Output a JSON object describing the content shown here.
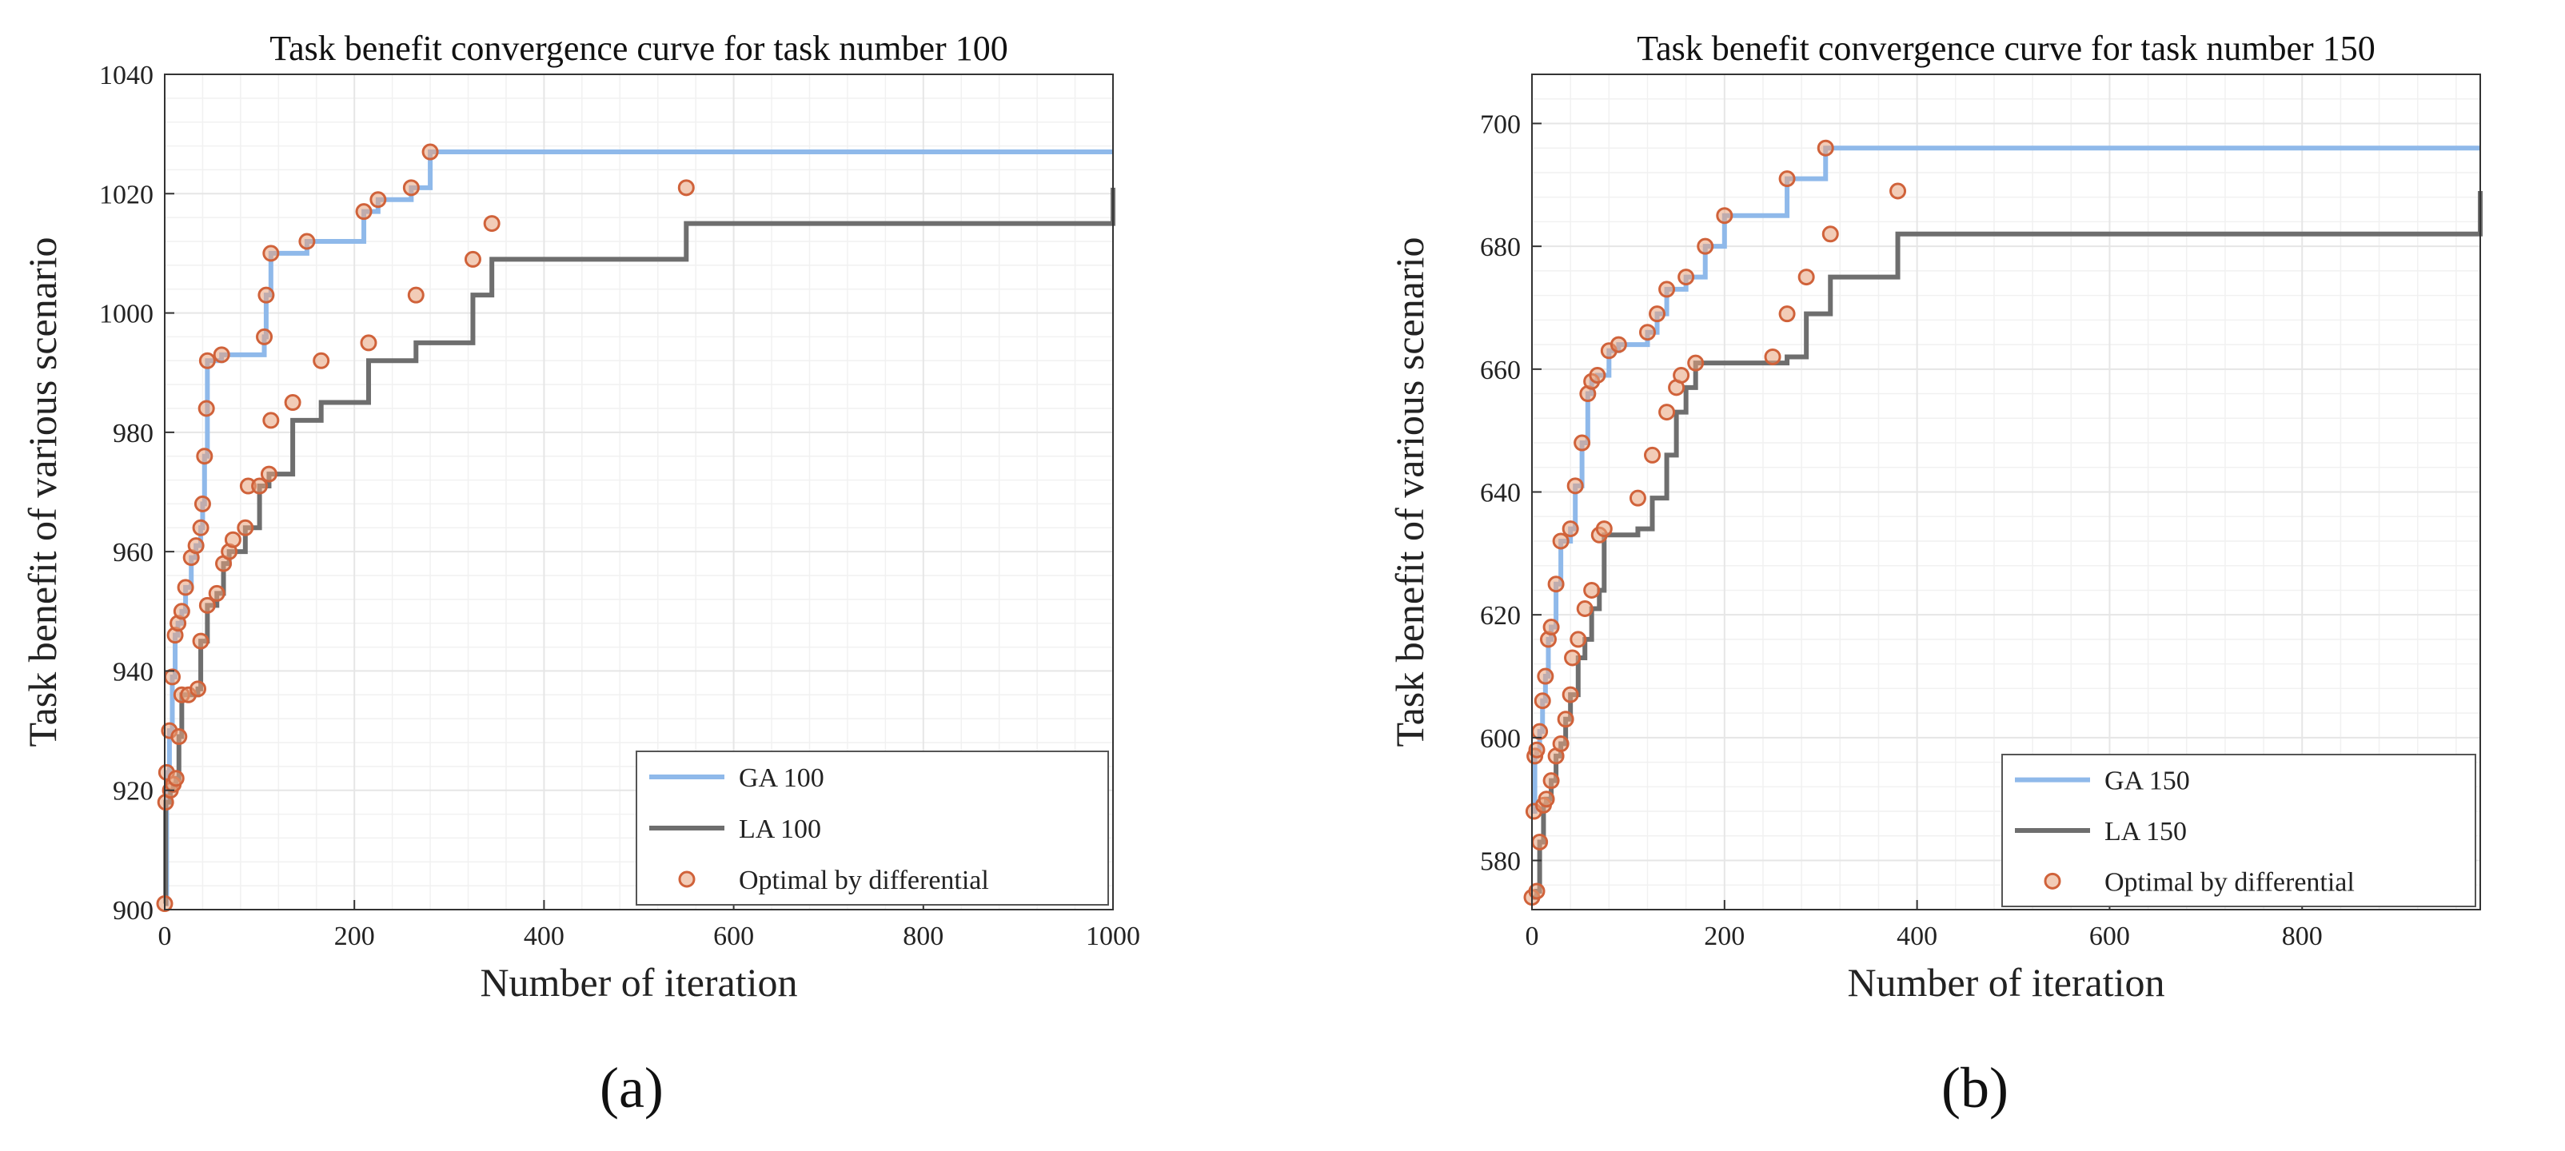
{
  "colors": {
    "ga": "#8fb9ea",
    "la": "#6e6e6e",
    "marker": "#d0623a",
    "grid": "#e6e6e6",
    "axis": "#333333"
  },
  "figure_labels": {
    "a": "(a)",
    "b": "(b)"
  },
  "chart_data": [
    {
      "type": "line",
      "step": true,
      "title": "Task benefit convergence curve for task number 100",
      "xlabel": "Number of iteration",
      "ylabel": "Task benefit of various scenario",
      "xlim": [
        0,
        1000
      ],
      "ylim": [
        900,
        1040
      ],
      "xticks": [
        0,
        200,
        400,
        600,
        800,
        1000
      ],
      "yticks": [
        900,
        920,
        940,
        960,
        980,
        1000,
        1020,
        1040
      ],
      "xtick_labels": [
        "0",
        "200",
        "400",
        "600",
        "800",
        "1000"
      ],
      "ytick_labels": [
        "900",
        "920",
        "940",
        "960",
        "980",
        "1000",
        "1020",
        "1040"
      ],
      "legend": [
        "GA 100",
        "LA 100",
        "Optimal by differential"
      ],
      "series": [
        {
          "name": "GA 100",
          "x": [
            0,
            2,
            5,
            8,
            11,
            14,
            18,
            22,
            28,
            33,
            38,
            40,
            42,
            45,
            60,
            105,
            107,
            112,
            150,
            210,
            225,
            260,
            280,
            1000
          ],
          "y": [
            901,
            923,
            930,
            939,
            946,
            948,
            950,
            954,
            959,
            961,
            964,
            968,
            976,
            992,
            993,
            996,
            1003,
            1010,
            1012,
            1017,
            1019,
            1021,
            1027,
            1027
          ]
        },
        {
          "name": "LA 100",
          "x": [
            0,
            1,
            6,
            9,
            12,
            15,
            18,
            25,
            35,
            38,
            45,
            55,
            62,
            68,
            85,
            100,
            110,
            135,
            165,
            215,
            265,
            325,
            345,
            550,
            1000
          ],
          "y": [
            901,
            918,
            920,
            921,
            922,
            929,
            936,
            936,
            937,
            945,
            951,
            953,
            958,
            960,
            964,
            971,
            973,
            982,
            985,
            992,
            995,
            1003,
            1009,
            1015,
            1021
          ]
        }
      ],
      "optimal_points": [
        [
          2,
          923
        ],
        [
          5,
          930
        ],
        [
          8,
          939
        ],
        [
          11,
          946
        ],
        [
          14,
          948
        ],
        [
          18,
          950
        ],
        [
          22,
          954
        ],
        [
          28,
          959
        ],
        [
          33,
          961
        ],
        [
          38,
          964
        ],
        [
          40,
          968
        ],
        [
          42,
          976
        ],
        [
          44,
          984
        ],
        [
          45,
          992
        ],
        [
          60,
          993
        ],
        [
          105,
          996
        ],
        [
          107,
          1003
        ],
        [
          112,
          1010
        ],
        [
          150,
          1012
        ],
        [
          210,
          1017
        ],
        [
          225,
          1019
        ],
        [
          260,
          1021
        ],
        [
          280,
          1027
        ],
        [
          0,
          901
        ],
        [
          1,
          918
        ],
        [
          6,
          920
        ],
        [
          9,
          921
        ],
        [
          12,
          922
        ],
        [
          15,
          929
        ],
        [
          18,
          936
        ],
        [
          25,
          936
        ],
        [
          35,
          937
        ],
        [
          38,
          945
        ],
        [
          45,
          951
        ],
        [
          55,
          953
        ],
        [
          62,
          958
        ],
        [
          68,
          960
        ],
        [
          72,
          962
        ],
        [
          85,
          964
        ],
        [
          88,
          971
        ],
        [
          100,
          971
        ],
        [
          110,
          973
        ],
        [
          112,
          982
        ],
        [
          135,
          985
        ],
        [
          165,
          992
        ],
        [
          215,
          995
        ],
        [
          265,
          1003
        ],
        [
          325,
          1009
        ],
        [
          345,
          1015
        ],
        [
          550,
          1021
        ]
      ]
    },
    {
      "type": "line",
      "step": true,
      "title": "Task benefit convergence curve for task number 150",
      "xlabel": "Number of iteration",
      "ylabel": "Task benefit of various scenario",
      "xlim": [
        0,
        985
      ],
      "ylim": [
        572,
        708
      ],
      "xticks": [
        0,
        200,
        400,
        600,
        800
      ],
      "yticks": [
        580,
        600,
        620,
        640,
        660,
        680,
        700
      ],
      "xtick_labels": [
        "0",
        "200",
        "400",
        "600",
        "800"
      ],
      "ytick_labels": [
        "580",
        "600",
        "620",
        "640",
        "660",
        "680",
        "700"
      ],
      "legend": [
        "GA 150",
        "LA 150",
        "Optimal by differential"
      ],
      "series": [
        {
          "name": "GA 150",
          "x": [
            0,
            3,
            5,
            8,
            11,
            14,
            17,
            20,
            25,
            30,
            40,
            45,
            52,
            58,
            62,
            68,
            80,
            90,
            120,
            130,
            140,
            160,
            180,
            200,
            265,
            305,
            985
          ],
          "y": [
            588,
            597,
            598,
            601,
            606,
            610,
            616,
            618,
            625,
            632,
            634,
            641,
            648,
            656,
            658,
            659,
            663,
            664,
            666,
            669,
            673,
            675,
            680,
            685,
            691,
            696,
            696
          ]
        },
        {
          "name": "LA 150",
          "x": [
            0,
            5,
            8,
            12,
            15,
            20,
            25,
            30,
            35,
            40,
            48,
            55,
            62,
            70,
            75,
            110,
            125,
            140,
            150,
            160,
            170,
            250,
            265,
            285,
            310,
            380,
            985
          ],
          "y": [
            574,
            575,
            583,
            589,
            590,
            593,
            597,
            599,
            603,
            607,
            613,
            616,
            621,
            624,
            633,
            634,
            639,
            646,
            653,
            657,
            661,
            661,
            662,
            669,
            675,
            682,
            689
          ]
        }
      ],
      "optimal_points": [
        [
          3,
          597
        ],
        [
          5,
          598
        ],
        [
          8,
          601
        ],
        [
          11,
          606
        ],
        [
          14,
          610
        ],
        [
          17,
          616
        ],
        [
          20,
          618
        ],
        [
          25,
          625
        ],
        [
          30,
          632
        ],
        [
          40,
          634
        ],
        [
          45,
          641
        ],
        [
          52,
          648
        ],
        [
          58,
          656
        ],
        [
          62,
          658
        ],
        [
          68,
          659
        ],
        [
          80,
          663
        ],
        [
          90,
          664
        ],
        [
          120,
          666
        ],
        [
          130,
          669
        ],
        [
          140,
          673
        ],
        [
          160,
          675
        ],
        [
          180,
          680
        ],
        [
          200,
          685
        ],
        [
          265,
          691
        ],
        [
          305,
          696
        ],
        [
          0,
          574
        ],
        [
          2,
          588
        ],
        [
          5,
          575
        ],
        [
          8,
          583
        ],
        [
          12,
          589
        ],
        [
          15,
          590
        ],
        [
          20,
          593
        ],
        [
          25,
          597
        ],
        [
          30,
          599
        ],
        [
          35,
          603
        ],
        [
          40,
          607
        ],
        [
          42,
          613
        ],
        [
          48,
          616
        ],
        [
          55,
          621
        ],
        [
          62,
          624
        ],
        [
          70,
          633
        ],
        [
          75,
          634
        ],
        [
          110,
          639
        ],
        [
          125,
          646
        ],
        [
          140,
          653
        ],
        [
          150,
          657
        ],
        [
          155,
          659
        ],
        [
          170,
          661
        ],
        [
          250,
          662
        ],
        [
          265,
          669
        ],
        [
          285,
          675
        ],
        [
          310,
          682
        ],
        [
          380,
          689
        ]
      ]
    }
  ]
}
